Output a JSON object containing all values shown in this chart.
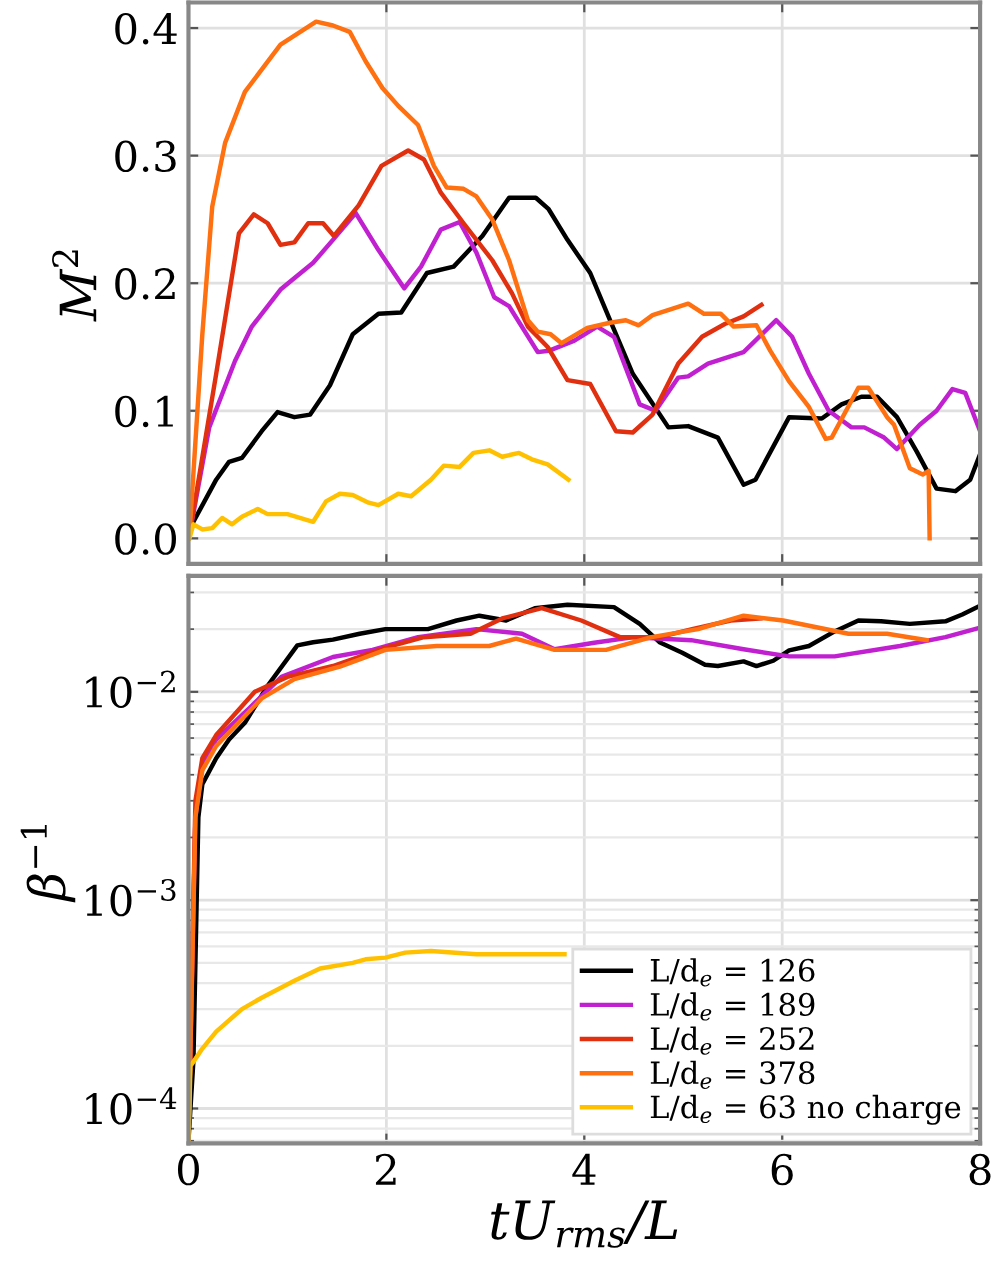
{
  "chart_data": [
    {
      "type": "line",
      "ylabel": "M$^{2}$",
      "xlim": [
        0,
        8
      ],
      "xticks": [
        0,
        2,
        4,
        6,
        8
      ],
      "ylim": [
        -0.02,
        0.42
      ],
      "yticks": [
        {
          "value": 0,
          "label": "0.0"
        },
        0.1,
        0.2,
        0.3,
        0.4
      ],
      "tick_labels": "y",
      "grid": true,
      "line_style": "solid",
      "series": [
        {
          "color": "#000000",
          "x": [
            0.0,
            0.05,
            0.28,
            0.41,
            0.54,
            0.74,
            0.9,
            1.07,
            1.23,
            1.43,
            1.66,
            1.92,
            2.15,
            2.41,
            2.68,
            2.97,
            3.24,
            3.51,
            3.64,
            3.83,
            4.06,
            4.26,
            4.49,
            4.85,
            5.05,
            5.35,
            5.61,
            5.73,
            6.07,
            6.4,
            6.6,
            6.8,
            6.96,
            7.16,
            7.36,
            7.56,
            7.75,
            7.9,
            8.0
          ],
          "values": [
            0.003,
            0.013,
            0.046,
            0.06,
            0.063,
            0.084,
            0.099,
            0.095,
            0.097,
            0.12,
            0.16,
            0.176,
            0.177,
            0.208,
            0.213,
            0.237,
            0.267,
            0.267,
            0.258,
            0.234,
            0.208,
            0.171,
            0.129,
            0.087,
            0.088,
            0.079,
            0.042,
            0.046,
            0.095,
            0.094,
            0.105,
            0.111,
            0.111,
            0.095,
            0.068,
            0.039,
            0.037,
            0.046,
            0.066
          ]
        },
        {
          "color": "#c020d0",
          "x": [
            0.01,
            0.21,
            0.47,
            0.64,
            0.93,
            1.26,
            1.46,
            1.69,
            1.92,
            2.18,
            2.35,
            2.55,
            2.74,
            2.91,
            3.09,
            3.24,
            3.53,
            3.64,
            3.9,
            4.13,
            4.3,
            4.56,
            4.72,
            4.95,
            5.05,
            5.25,
            5.61,
            5.94,
            6.1,
            6.27,
            6.47,
            6.7,
            6.83,
            7.03,
            7.16,
            7.39,
            7.56,
            7.72,
            7.85,
            8.0
          ],
          "values": [
            0.003,
            0.087,
            0.139,
            0.166,
            0.195,
            0.216,
            0.234,
            0.255,
            0.226,
            0.196,
            0.213,
            0.242,
            0.248,
            0.224,
            0.189,
            0.182,
            0.146,
            0.147,
            0.155,
            0.166,
            0.158,
            0.105,
            0.1,
            0.126,
            0.127,
            0.137,
            0.146,
            0.171,
            0.158,
            0.129,
            0.1,
            0.087,
            0.087,
            0.079,
            0.07,
            0.089,
            0.1,
            0.117,
            0.114,
            0.084
          ]
        },
        {
          "color": "#e03010",
          "x": [
            0.01,
            0.28,
            0.51,
            0.66,
            0.8,
            0.93,
            1.07,
            1.21,
            1.36,
            1.47,
            1.72,
            1.95,
            2.22,
            2.38,
            2.55,
            2.78,
            3.07,
            3.27,
            3.43,
            3.63,
            3.83,
            4.06,
            4.32,
            4.49,
            4.69,
            4.95,
            5.19,
            5.42,
            5.61,
            5.79
          ],
          "values": [
            0.003,
            0.129,
            0.239,
            0.254,
            0.247,
            0.23,
            0.232,
            0.247,
            0.247,
            0.237,
            0.261,
            0.292,
            0.304,
            0.297,
            0.271,
            0.247,
            0.218,
            0.192,
            0.166,
            0.15,
            0.124,
            0.121,
            0.084,
            0.083,
            0.097,
            0.137,
            0.158,
            0.168,
            0.174,
            0.183
          ]
        },
        {
          "color": "#ff7010",
          "x": [
            0.01,
            0.14,
            0.24,
            0.37,
            0.57,
            0.93,
            1.29,
            1.46,
            1.63,
            1.79,
            1.96,
            2.12,
            2.32,
            2.48,
            2.61,
            2.78,
            2.91,
            3.07,
            3.24,
            3.43,
            3.53,
            3.66,
            3.77,
            4.03,
            4.26,
            4.42,
            4.55,
            4.69,
            5.05,
            5.21,
            5.38,
            5.51,
            5.74,
            5.88,
            6.07,
            6.27,
            6.44,
            6.5,
            6.77,
            6.87,
            7.06,
            7.13,
            7.29,
            7.42,
            7.48,
            7.49
          ],
          "values": [
            0.003,
            0.16,
            0.26,
            0.31,
            0.35,
            0.387,
            0.405,
            0.402,
            0.397,
            0.374,
            0.353,
            0.339,
            0.324,
            0.292,
            0.275,
            0.274,
            0.268,
            0.25,
            0.218,
            0.171,
            0.162,
            0.16,
            0.153,
            0.165,
            0.169,
            0.171,
            0.167,
            0.175,
            0.184,
            0.176,
            0.176,
            0.166,
            0.167,
            0.147,
            0.123,
            0.103,
            0.078,
            0.079,
            0.118,
            0.118,
            0.095,
            0.089,
            0.055,
            0.05,
            0.053,
            0.0
          ]
        },
        {
          "color": "#ffc000",
          "x": [
            0.01,
            0.05,
            0.14,
            0.24,
            0.34,
            0.44,
            0.54,
            0.7,
            0.8,
            1.0,
            1.26,
            1.39,
            1.53,
            1.66,
            1.82,
            1.92,
            2.12,
            2.25,
            2.45,
            2.58,
            2.74,
            2.88,
            3.04,
            3.17,
            3.34,
            3.47,
            3.63,
            3.84
          ],
          "values": [
            0.0,
            0.011,
            0.007,
            0.008,
            0.016,
            0.011,
            0.017,
            0.023,
            0.019,
            0.019,
            0.013,
            0.029,
            0.035,
            0.034,
            0.028,
            0.026,
            0.035,
            0.033,
            0.046,
            0.057,
            0.056,
            0.067,
            0.069,
            0.064,
            0.067,
            0.062,
            0.058,
            0.046
          ]
        }
      ]
    },
    {
      "type": "line",
      "xlabel": "tU$_{rms}$/L",
      "ylabel": "β$^{−1}$",
      "log": "y",
      "xlim": [
        0,
        8
      ],
      "xticks": [
        0,
        2,
        4,
        6,
        8
      ],
      "ylim": [
        6.8e-05,
        0.036
      ],
      "yticks": [
        {
          "value": 0.0001,
          "label": "10$^{−4}$"
        },
        {
          "value": 0.001,
          "label": "10$^{−3}$"
        },
        {
          "value": 0.01,
          "label": "10$^{−2}$"
        }
      ],
      "grid": true,
      "legend": "bottom right",
      "line_style": "solid",
      "series": [
        {
          "name": "L/d$_{e}$ = 126",
          "color": "#000000",
          "x": [
            0.0,
            0.05,
            0.1,
            0.14,
            0.28,
            0.41,
            0.57,
            0.8,
            1.1,
            1.26,
            1.46,
            1.73,
            1.99,
            2.42,
            2.71,
            2.94,
            3.21,
            3.5,
            3.83,
            4.3,
            4.56,
            4.76,
            4.99,
            5.22,
            5.35,
            5.61,
            5.74,
            5.91,
            6.07,
            6.27,
            6.53,
            6.77,
            7.0,
            7.29,
            7.65,
            7.82,
            7.98
          ],
          "values": [
            7e-05,
            0.00017,
            0.0025,
            0.0036,
            0.0048,
            0.0059,
            0.0071,
            0.0107,
            0.0167,
            0.0173,
            0.0178,
            0.019,
            0.02,
            0.02,
            0.022,
            0.0232,
            0.022,
            0.0252,
            0.0262,
            0.0255,
            0.0212,
            0.0173,
            0.0154,
            0.0135,
            0.0133,
            0.014,
            0.0133,
            0.0141,
            0.0158,
            0.0166,
            0.0195,
            0.022,
            0.0218,
            0.0212,
            0.0218,
            0.0235,
            0.0256
          ]
        },
        {
          "name": "L/d$_{e}$ = 189",
          "color": "#c020d0",
          "x": [
            0.0,
            0.07,
            0.14,
            0.28,
            0.61,
            0.94,
            1.46,
            1.86,
            2.32,
            2.91,
            3.37,
            3.7,
            4.1,
            4.5,
            5.08,
            5.61,
            6.07,
            6.53,
            7.19,
            7.65,
            7.98
          ],
          "values": [
            7e-05,
            0.0025,
            0.0045,
            0.0059,
            0.0083,
            0.0118,
            0.0147,
            0.0159,
            0.0183,
            0.02,
            0.019,
            0.016,
            0.0172,
            0.0183,
            0.0177,
            0.016,
            0.0148,
            0.0148,
            0.0166,
            0.0183,
            0.0202
          ]
        },
        {
          "name": "L/d$_{e}$ = 252",
          "color": "#e03010",
          "x": [
            0.0,
            0.07,
            0.14,
            0.28,
            0.67,
            1.0,
            1.46,
            1.99,
            2.38,
            2.85,
            3.17,
            3.57,
            3.97,
            4.36,
            4.76,
            5.09,
            5.48,
            5.78
          ],
          "values": [
            7e-05,
            0.003,
            0.0048,
            0.0062,
            0.01,
            0.0118,
            0.0133,
            0.0163,
            0.0183,
            0.019,
            0.0225,
            0.0252,
            0.022,
            0.0183,
            0.0183,
            0.02,
            0.022,
            0.0225
          ]
        },
        {
          "name": "L/d$_{e}$ = 378",
          "color": "#ff7010",
          "x": [
            0.0,
            0.07,
            0.14,
            0.28,
            0.74,
            1.07,
            1.53,
            1.99,
            2.51,
            3.04,
            3.31,
            3.7,
            4.22,
            4.68,
            5.15,
            5.61,
            6.01,
            6.67,
            7.06,
            7.46
          ],
          "values": [
            7e-05,
            0.0025,
            0.0042,
            0.0055,
            0.0093,
            0.0115,
            0.0132,
            0.0159,
            0.0166,
            0.0166,
            0.018,
            0.0159,
            0.0159,
            0.0183,
            0.02,
            0.0232,
            0.022,
            0.019,
            0.019,
            0.0177
          ]
        },
        {
          "name": "L/d$_{e}$ = 63 no charge",
          "color": "#ffc000",
          "x": [
            0.0,
            0.02,
            0.07,
            0.14,
            0.28,
            0.54,
            0.74,
            1.07,
            1.33,
            1.66,
            1.79,
            1.99,
            2.19,
            2.45,
            2.91,
            3.24,
            3.8
          ],
          "values": [
            7e-05,
            0.00016,
            0.000173,
            0.000194,
            0.000234,
            0.0003,
            0.00034,
            0.00041,
            0.00047,
            0.0005,
            0.00052,
            0.00053,
            0.00056,
            0.00057,
            0.00055,
            0.00055,
            0.00055
          ]
        }
      ]
    }
  ]
}
